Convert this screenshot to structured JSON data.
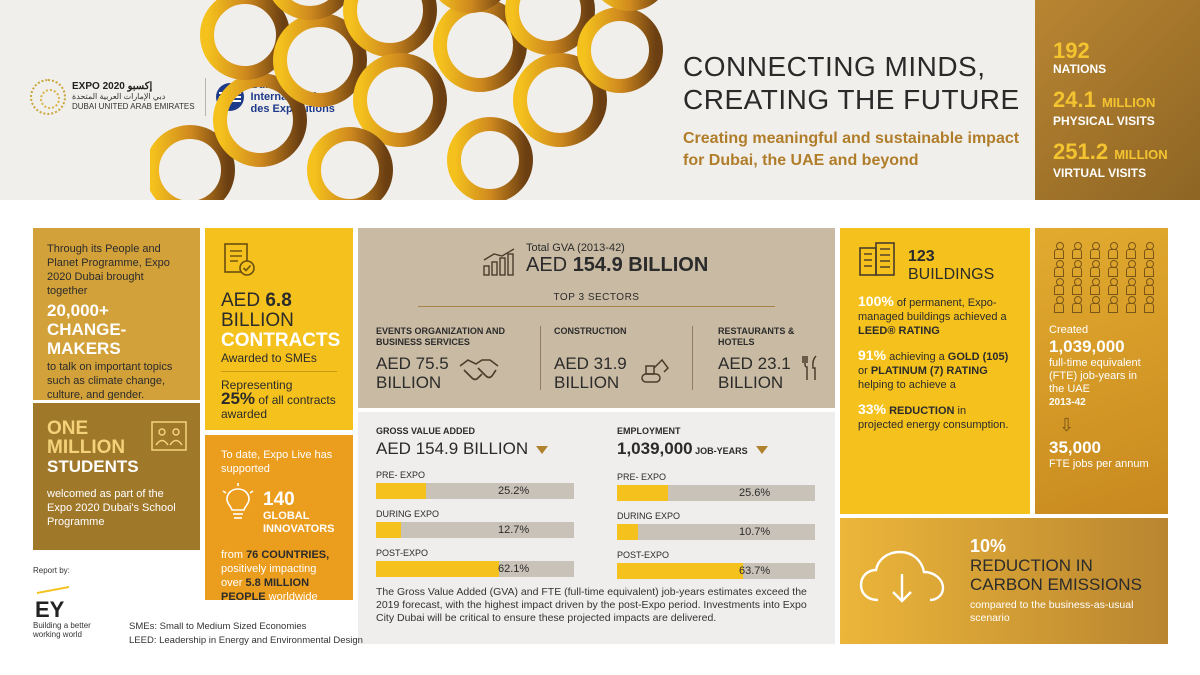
{
  "header": {
    "expo_logo_line1": "EXPO 2020 إكسبو",
    "expo_logo_line2": "دبي الإمارات العربية المتحدة",
    "expo_logo_line3": "DUBAI UNITED ARAB EMIRATES",
    "bie_line1": "Bureau",
    "bie_line2": "International",
    "bie_line3": "des Expositions",
    "headline_line1": "CONNECTING MINDS,",
    "headline_line2": "CREATING THE FUTURE",
    "subline": "Creating meaningful and sustainable impact for Dubai, the UAE and beyond"
  },
  "top_stats": [
    {
      "num": "192",
      "unit": "",
      "label": "NATIONS"
    },
    {
      "num": "24.1",
      "unit": "MILLION",
      "label": "PHYSICAL VISITS"
    },
    {
      "num": "251.2",
      "unit": "MILLION",
      "label": "VIRTUAL VISITS"
    }
  ],
  "people": {
    "intro": "Through its People and Planet Programme, Expo 2020 Dubai brought together",
    "big1": "20,000+",
    "big2": "CHANGE-MAKERS",
    "tail": "to talk on important topics such as climate change, culture, and gender."
  },
  "students": {
    "big1": "ONE MILLION",
    "big2": "STUDENTS",
    "tail": "welcomed as part of the Expo 2020 Dubai's School Programme"
  },
  "contracts": {
    "aed_prefix": "AED ",
    "aed_value": "6.8",
    "aed_unit": "BILLION",
    "contracts_word": "CONTRACTS",
    "awarded": "Awarded to SMEs",
    "representing": "Representing",
    "pct": "25%",
    "pct_tail": " of all contracts awarded"
  },
  "expo_live": {
    "intro": "To date, Expo Live has supported",
    "num": "140",
    "num_label": "GLOBAL INNOVATORS",
    "from": "from ",
    "countries": "76 COUNTRIES,",
    "mid": " positively impacting over ",
    "people": "5.8 MILLION PEOPLE",
    "end": " worldwide"
  },
  "gva": {
    "small": "Total GVA (2013-42)",
    "big_prefix": "AED ",
    "big_value": "154.9 BILLION",
    "sectors_label": "TOP 3 SECTORS",
    "sectors": [
      {
        "name": "EVENTS ORGANIZATION AND BUSINESS SERVICES",
        "val1": "AED 75.5",
        "val2": "BILLION"
      },
      {
        "name": "CONSTRUCTION",
        "val1": "AED 31.9",
        "val2": "BILLION"
      },
      {
        "name": "RESTAURANTS & HOTELS",
        "val1": "AED 23.1",
        "val2": "BILLION"
      }
    ]
  },
  "bars": {
    "gva": {
      "header": "GROSS VALUE ADDED",
      "value_prefix": "AED ",
      "value": "154.9",
      "value_unit": " BILLION",
      "items": [
        {
          "label": "PRE- EXPO",
          "pct": 25.2,
          "text": "25.2%"
        },
        {
          "label": "DURING EXPO",
          "pct": 12.7,
          "text": "12.7%"
        },
        {
          "label": "POST-EXPO",
          "pct": 62.1,
          "text": "62.1%"
        }
      ]
    },
    "employment": {
      "header": "EMPLOYMENT",
      "value": "1,039,000",
      "value_unit": " JOB-YEARS",
      "items": [
        {
          "label": "PRE- EXPO",
          "pct": 25.6,
          "text": "25.6%"
        },
        {
          "label": "DURING EXPO",
          "pct": 10.7,
          "text": "10.7%"
        },
        {
          "label": "POST-EXPO",
          "pct": 63.7,
          "text": "63.7%"
        }
      ]
    },
    "note": "The Gross Value Added (GVA) and FTE (full-time equivalent) job-years estimates exceed the 2019 forecast, with the highest impact driven by the post-Expo period. Investments into Expo City Dubai will be critical to ensure these projected impacts are delivered."
  },
  "buildings": {
    "num": "123",
    "word": "BUILDINGS",
    "p1_hl": "100%",
    "p1": " of permanent, Expo-managed buildings achieved a ",
    "p1_b": "LEED® RATING",
    "p2_hl": "91%",
    "p2": " achieving a ",
    "p2_b1": "GOLD (105)",
    "p2_or": " or ",
    "p2_b2": "PLATINUM (7) RATING",
    "p2_end": " helping to achieve a",
    "p3_hl": "33%",
    "p3_b": " REDUCTION",
    "p3": " in projected energy consumption."
  },
  "jobs": {
    "created": "Created",
    "num": "1,039,000",
    "desc": "full-time equivalent (FTE) job-years in the UAE",
    "years": "2013-42",
    "arrow": "⇩",
    "num2": "35,000",
    "desc2": "FTE jobs per annum"
  },
  "carbon": {
    "pct": "10%",
    "red1": "REDUCTION IN",
    "red2": "CARBON EMISSIONS",
    "cmp": "compared to the business-as-usual scenario"
  },
  "footer": {
    "report_by": "Report by:",
    "ey": "EY",
    "ey_tag": "Building a better working world",
    "note1": "SMEs: Small to Medium Sized Economies",
    "note2": "LEED: Leadership in Energy and Environmental Design"
  },
  "colors": {
    "gold": "#f5c21d",
    "dark_gold": "#a0782a",
    "orange": "#eb9d1e",
    "taupe": "#c9bba3",
    "bar_bg": "#c9c2b8"
  }
}
